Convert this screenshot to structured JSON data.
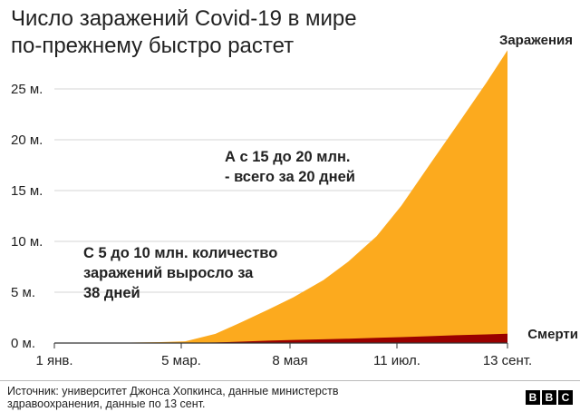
{
  "title_lines": [
    "Число заражений Covid-19 в мире",
    "по-прежнему быстро растет"
  ],
  "source": "Источник: университет Джонса Хопкинса, данные министерств здравоохранения, данные по 13 сент.",
  "logo": [
    "B",
    "B",
    "C"
  ],
  "colors": {
    "infections": "#fcaa1e",
    "deaths": "#990000",
    "grid": "#d5d5d5",
    "text": "#222222"
  },
  "chart_data": {
    "type": "area",
    "title": "Число заражений Covid-19 в мире по-прежнему быстро растет",
    "x_ticks": [
      "1 янв.",
      "5 мар.",
      "8 мая",
      "11 июл.",
      "13 сент."
    ],
    "x": [
      "2020-01-01",
      "2020-02-01",
      "2020-03-01",
      "2020-03-15",
      "2020-04-01",
      "2020-04-15",
      "2020-05-01",
      "2020-05-15",
      "2020-06-01",
      "2020-06-15",
      "2020-07-01",
      "2020-07-15",
      "2020-08-01",
      "2020-08-15",
      "2020-09-01",
      "2020-09-13"
    ],
    "y_ticks": [
      "0 м.",
      "5 м.",
      "10 м.",
      "15 м.",
      "20 м.",
      "25 м."
    ],
    "ylim": [
      0,
      28.5
    ],
    "grid": true,
    "series": [
      {
        "name": "Заражения",
        "values": [
          0,
          0.01,
          0.09,
          0.17,
          0.9,
          2.0,
          3.3,
          4.5,
          6.2,
          8.0,
          10.5,
          13.5,
          17.8,
          21.3,
          25.6,
          28.8
        ]
      },
      {
        "name": "Смерти",
        "values": [
          0,
          0,
          0,
          0.01,
          0.05,
          0.13,
          0.23,
          0.3,
          0.37,
          0.43,
          0.51,
          0.58,
          0.68,
          0.77,
          0.85,
          0.92
        ]
      }
    ],
    "annotations": [
      {
        "lines": [
          "А с 15 до 20 млн.",
          "- всего за 20 дней"
        ]
      },
      {
        "lines": [
          "С 5 до 10 млн. количество",
          "заражений выросло за",
          "38 дней"
        ]
      }
    ]
  }
}
